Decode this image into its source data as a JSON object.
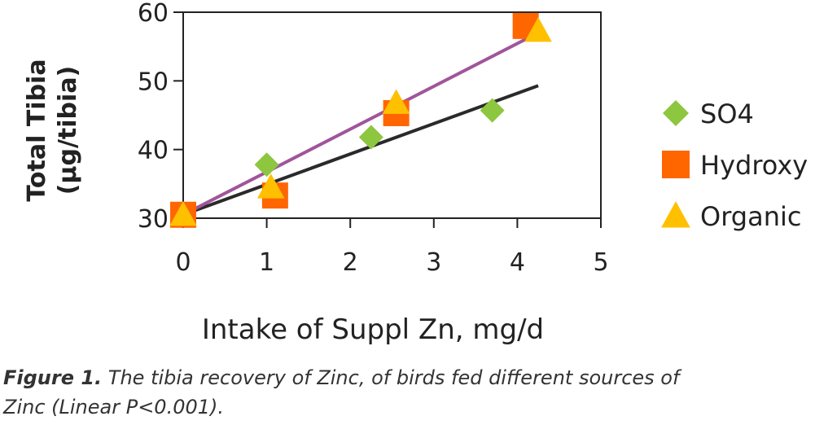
{
  "chart_data": {
    "type": "scatter",
    "title": "",
    "xlabel": "Intake of Suppl Zn, mg/d",
    "ylabel_line1": "Total Tibia",
    "ylabel_line2": "(µg/tibia)",
    "xlim": [
      0,
      5
    ],
    "ylim": [
      30,
      60
    ],
    "xticks": [
      "0",
      "1",
      "2",
      "3",
      "4",
      "5"
    ],
    "yticks": [
      "30",
      "40",
      "50",
      "60"
    ],
    "grid": false,
    "legend_position": "right",
    "series": [
      {
        "name": "SO4",
        "marker": "diamond",
        "color": "#8DC63F",
        "points": [
          [
            0,
            30.5
          ],
          [
            1,
            37.8
          ],
          [
            2.25,
            41.8
          ],
          [
            3.7,
            45.7
          ]
        ]
      },
      {
        "name": "Hydroxy",
        "marker": "square",
        "color": "#FF6600",
        "points": [
          [
            0,
            30.5
          ],
          [
            1.1,
            33.3
          ],
          [
            2.55,
            45.3
          ],
          [
            4.1,
            58.0
          ]
        ]
      },
      {
        "name": "Organic",
        "marker": "triangle",
        "color": "#FFC000",
        "points": [
          [
            0,
            30.5
          ],
          [
            1.05,
            34.5
          ],
          [
            2.55,
            46.8
          ],
          [
            4.25,
            57.3
          ]
        ]
      }
    ],
    "trendlines": [
      {
        "color": "#2A2A2A",
        "from": [
          0,
          30.5
        ],
        "to": [
          4.25,
          49.3
        ]
      },
      {
        "color": "#A0559B",
        "from": [
          0,
          30.5
        ],
        "to": [
          4.25,
          57.0
        ]
      }
    ]
  },
  "caption": {
    "label": "Figure 1.",
    "text": " The tibia recovery of Zinc, of birds fed different sources of Zinc (Linear P<0.001)."
  }
}
